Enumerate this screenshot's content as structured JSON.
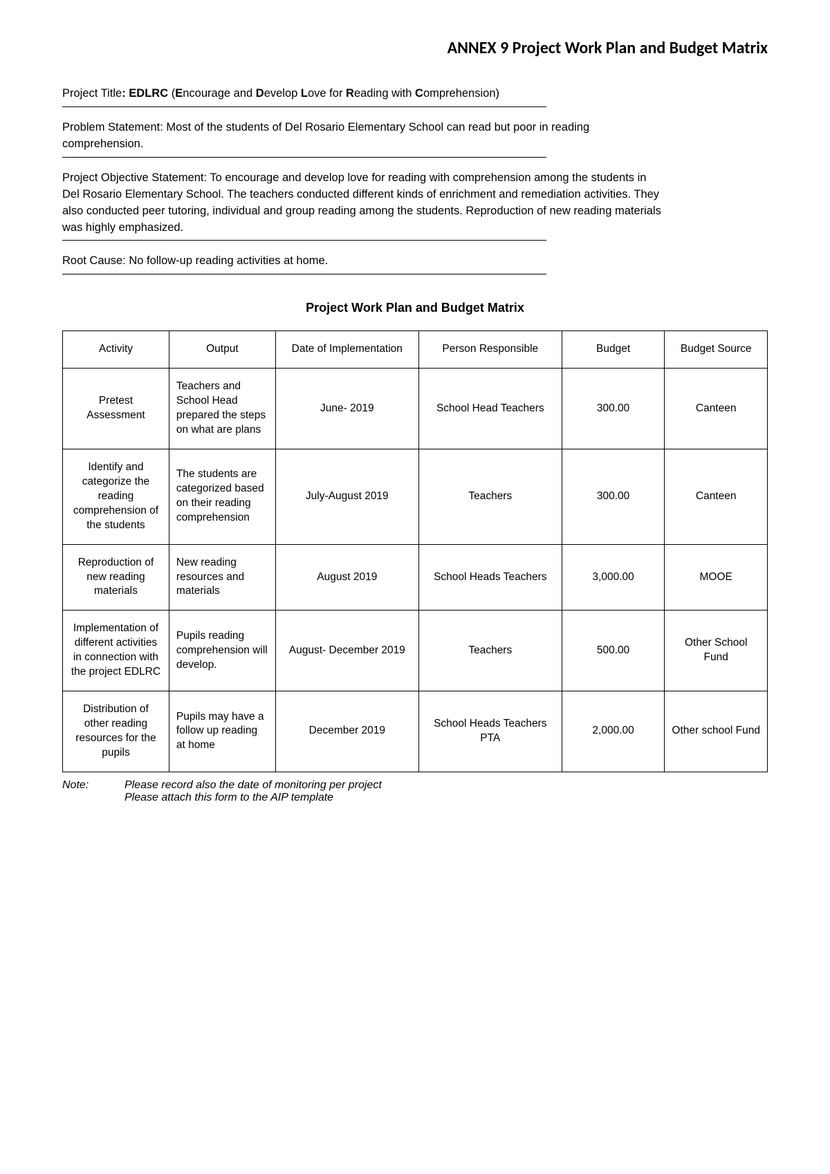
{
  "header": "ANNEX 9 Project Work Plan and Budget Matrix",
  "project_title": {
    "label": "Project Title",
    "acronym": "EDLRC",
    "expansion_prefix_1": "E",
    "expansion_rest_1": "ncourage and ",
    "expansion_prefix_2": "D",
    "expansion_rest_2": "evelop ",
    "expansion_prefix_3": "L",
    "expansion_rest_3": "ove for ",
    "expansion_prefix_4": "R",
    "expansion_rest_4": "eading with ",
    "expansion_prefix_5": "C",
    "expansion_rest_5": "omprehension)"
  },
  "problem_statement": {
    "label": "Problem Statement: ",
    "text": "Most of the students of Del Rosario Elementary School can read but poor in reading comprehension."
  },
  "objective": {
    "label": "Project Objective Statement: ",
    "text": "To encourage and develop love for reading with comprehension among the students in Del Rosario Elementary School. The teachers conducted different kinds of enrichment and remediation activities. They also conducted peer tutoring, individual and group reading among the students. Reproduction of new reading materials was highly emphasized."
  },
  "root_cause": {
    "label": "Root Cause: ",
    "text": "No follow-up reading activities at home."
  },
  "matrix_title": "Project Work Plan and Budget Matrix",
  "table": {
    "columns": [
      "Activity",
      "Output",
      "Date of Implementation",
      "Person Responsible",
      "Budget",
      "Budget Source"
    ],
    "rows": [
      {
        "activity": "Pretest Assessment",
        "output": "Teachers and School Head prepared the steps on what are plans",
        "date": "June- 2019",
        "person": "School Head Teachers",
        "budget": "300.00",
        "source": "Canteen"
      },
      {
        "activity": "Identify and categorize the reading comprehension of the students",
        "output": "The students are categorized based on their reading comprehension",
        "date": "July-August 2019",
        "person": "Teachers",
        "budget": "300.00",
        "source": "Canteen"
      },
      {
        "activity": "Reproduction of new reading materials",
        "output": "New reading resources and materials",
        "date": "August 2019",
        "person": "School Heads Teachers",
        "budget": "3,000.00",
        "source": "MOOE"
      },
      {
        "activity": "Implementation of different activities in connection with the project EDLRC",
        "output": "Pupils reading comprehension will develop.",
        "date": "August- December 2019",
        "person": "Teachers",
        "budget": "500.00",
        "source": "Other School Fund"
      },
      {
        "activity": "Distribution of other reading resources for the pupils",
        "output": "Pupils may have a follow up reading at home",
        "date": "December 2019",
        "person": "School Heads Teachers PTA",
        "budget": "2,000.00",
        "source": "Other school Fund"
      }
    ]
  },
  "note": {
    "label": "Note:",
    "line1": "Please record also the date of monitoring per project",
    "line2": "Please attach this form to the AIP template"
  }
}
